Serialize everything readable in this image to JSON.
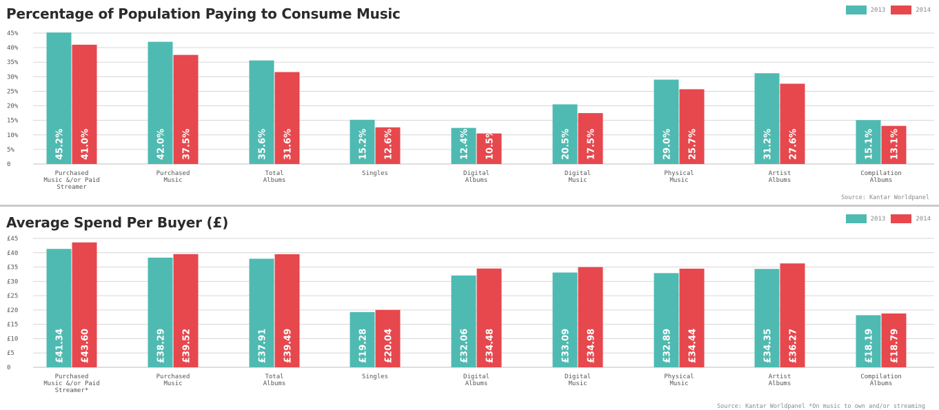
{
  "colors": {
    "series_2013": "#4fbab2",
    "series_2014": "#e6484d",
    "grid": "#d6d6d6"
  },
  "chart_data": [
    {
      "type": "bar",
      "title": "Percentage of Population Paying to Consume Music",
      "categories": [
        [
          "Purchased",
          "Music &/or Paid",
          "Streamer"
        ],
        [
          "Purchased",
          "Music"
        ],
        [
          "Total",
          "Albums"
        ],
        [
          "Singles"
        ],
        [
          "Digital",
          "Albums"
        ],
        [
          "Digital",
          "Music"
        ],
        [
          "Physical",
          "Music"
        ],
        [
          "Artist",
          "Albums"
        ],
        [
          "Compilation",
          "Albums"
        ]
      ],
      "series": [
        {
          "name": "2013",
          "values": [
            45.2,
            42.0,
            35.6,
            15.2,
            12.4,
            20.5,
            29.0,
            31.2,
            15.1
          ],
          "labels": [
            "45.2%",
            "42.0%",
            "35.6%",
            "15.2%",
            "12.4%",
            "20.5%",
            "29.0%",
            "31.2%",
            "15.1%"
          ]
        },
        {
          "name": "2014",
          "values": [
            41.0,
            37.5,
            31.6,
            12.6,
            10.5,
            17.5,
            25.7,
            27.6,
            13.1
          ],
          "labels": [
            "41.0%",
            "37.5%",
            "31.6%",
            "12.6%",
            "10.5%",
            "17.5%",
            "25.7%",
            "27.6%",
            "13.1%"
          ]
        }
      ],
      "yticks": [
        "0",
        "5%",
        "10%",
        "15%",
        "20%",
        "25%",
        "30%",
        "35%",
        "40%",
        "45%"
      ],
      "ylim": [
        0,
        45
      ],
      "ystep": 5,
      "legend_position": "top-right",
      "grid": true,
      "source": "Source: Kantar Worldpanel"
    },
    {
      "type": "bar",
      "title": "Average Spend Per Buyer (£)",
      "categories": [
        [
          "Purchased",
          "Music &/or Paid",
          "Streamer*"
        ],
        [
          "Purchased",
          "Music"
        ],
        [
          "Total",
          "Albums"
        ],
        [
          "Singles"
        ],
        [
          "Digital",
          "Albums"
        ],
        [
          "Digital",
          "Music"
        ],
        [
          "Physical",
          "Music"
        ],
        [
          "Artist",
          "Albums"
        ],
        [
          "Compilation",
          "Albums"
        ]
      ],
      "series": [
        {
          "name": "2013",
          "values": [
            41.34,
            38.29,
            37.91,
            19.28,
            32.06,
            33.09,
            32.89,
            34.35,
            18.19
          ],
          "labels": [
            "£41.34",
            "£38.29",
            "£37.91",
            "£19.28",
            "£32.06",
            "£33.09",
            "£32.89",
            "£34.35",
            "£18.19"
          ]
        },
        {
          "name": "2014",
          "values": [
            43.6,
            39.52,
            39.49,
            20.04,
            34.48,
            34.98,
            34.44,
            36.27,
            18.79
          ],
          "labels": [
            "£43.60",
            "£39.52",
            "£39.49",
            "£20.04",
            "£34.48",
            "£34.98",
            "£34.44",
            "£36.27",
            "£18.79"
          ]
        }
      ],
      "yticks": [
        "0",
        "£5",
        "£10",
        "£15",
        "£20",
        "£25",
        "£30",
        "£35",
        "£40",
        "£45"
      ],
      "ylim": [
        0,
        45
      ],
      "ystep": 5,
      "legend_position": "top-right",
      "grid": true,
      "source": "Source: Kantar Worldpanel   *On music to own and/or streaming"
    }
  ]
}
